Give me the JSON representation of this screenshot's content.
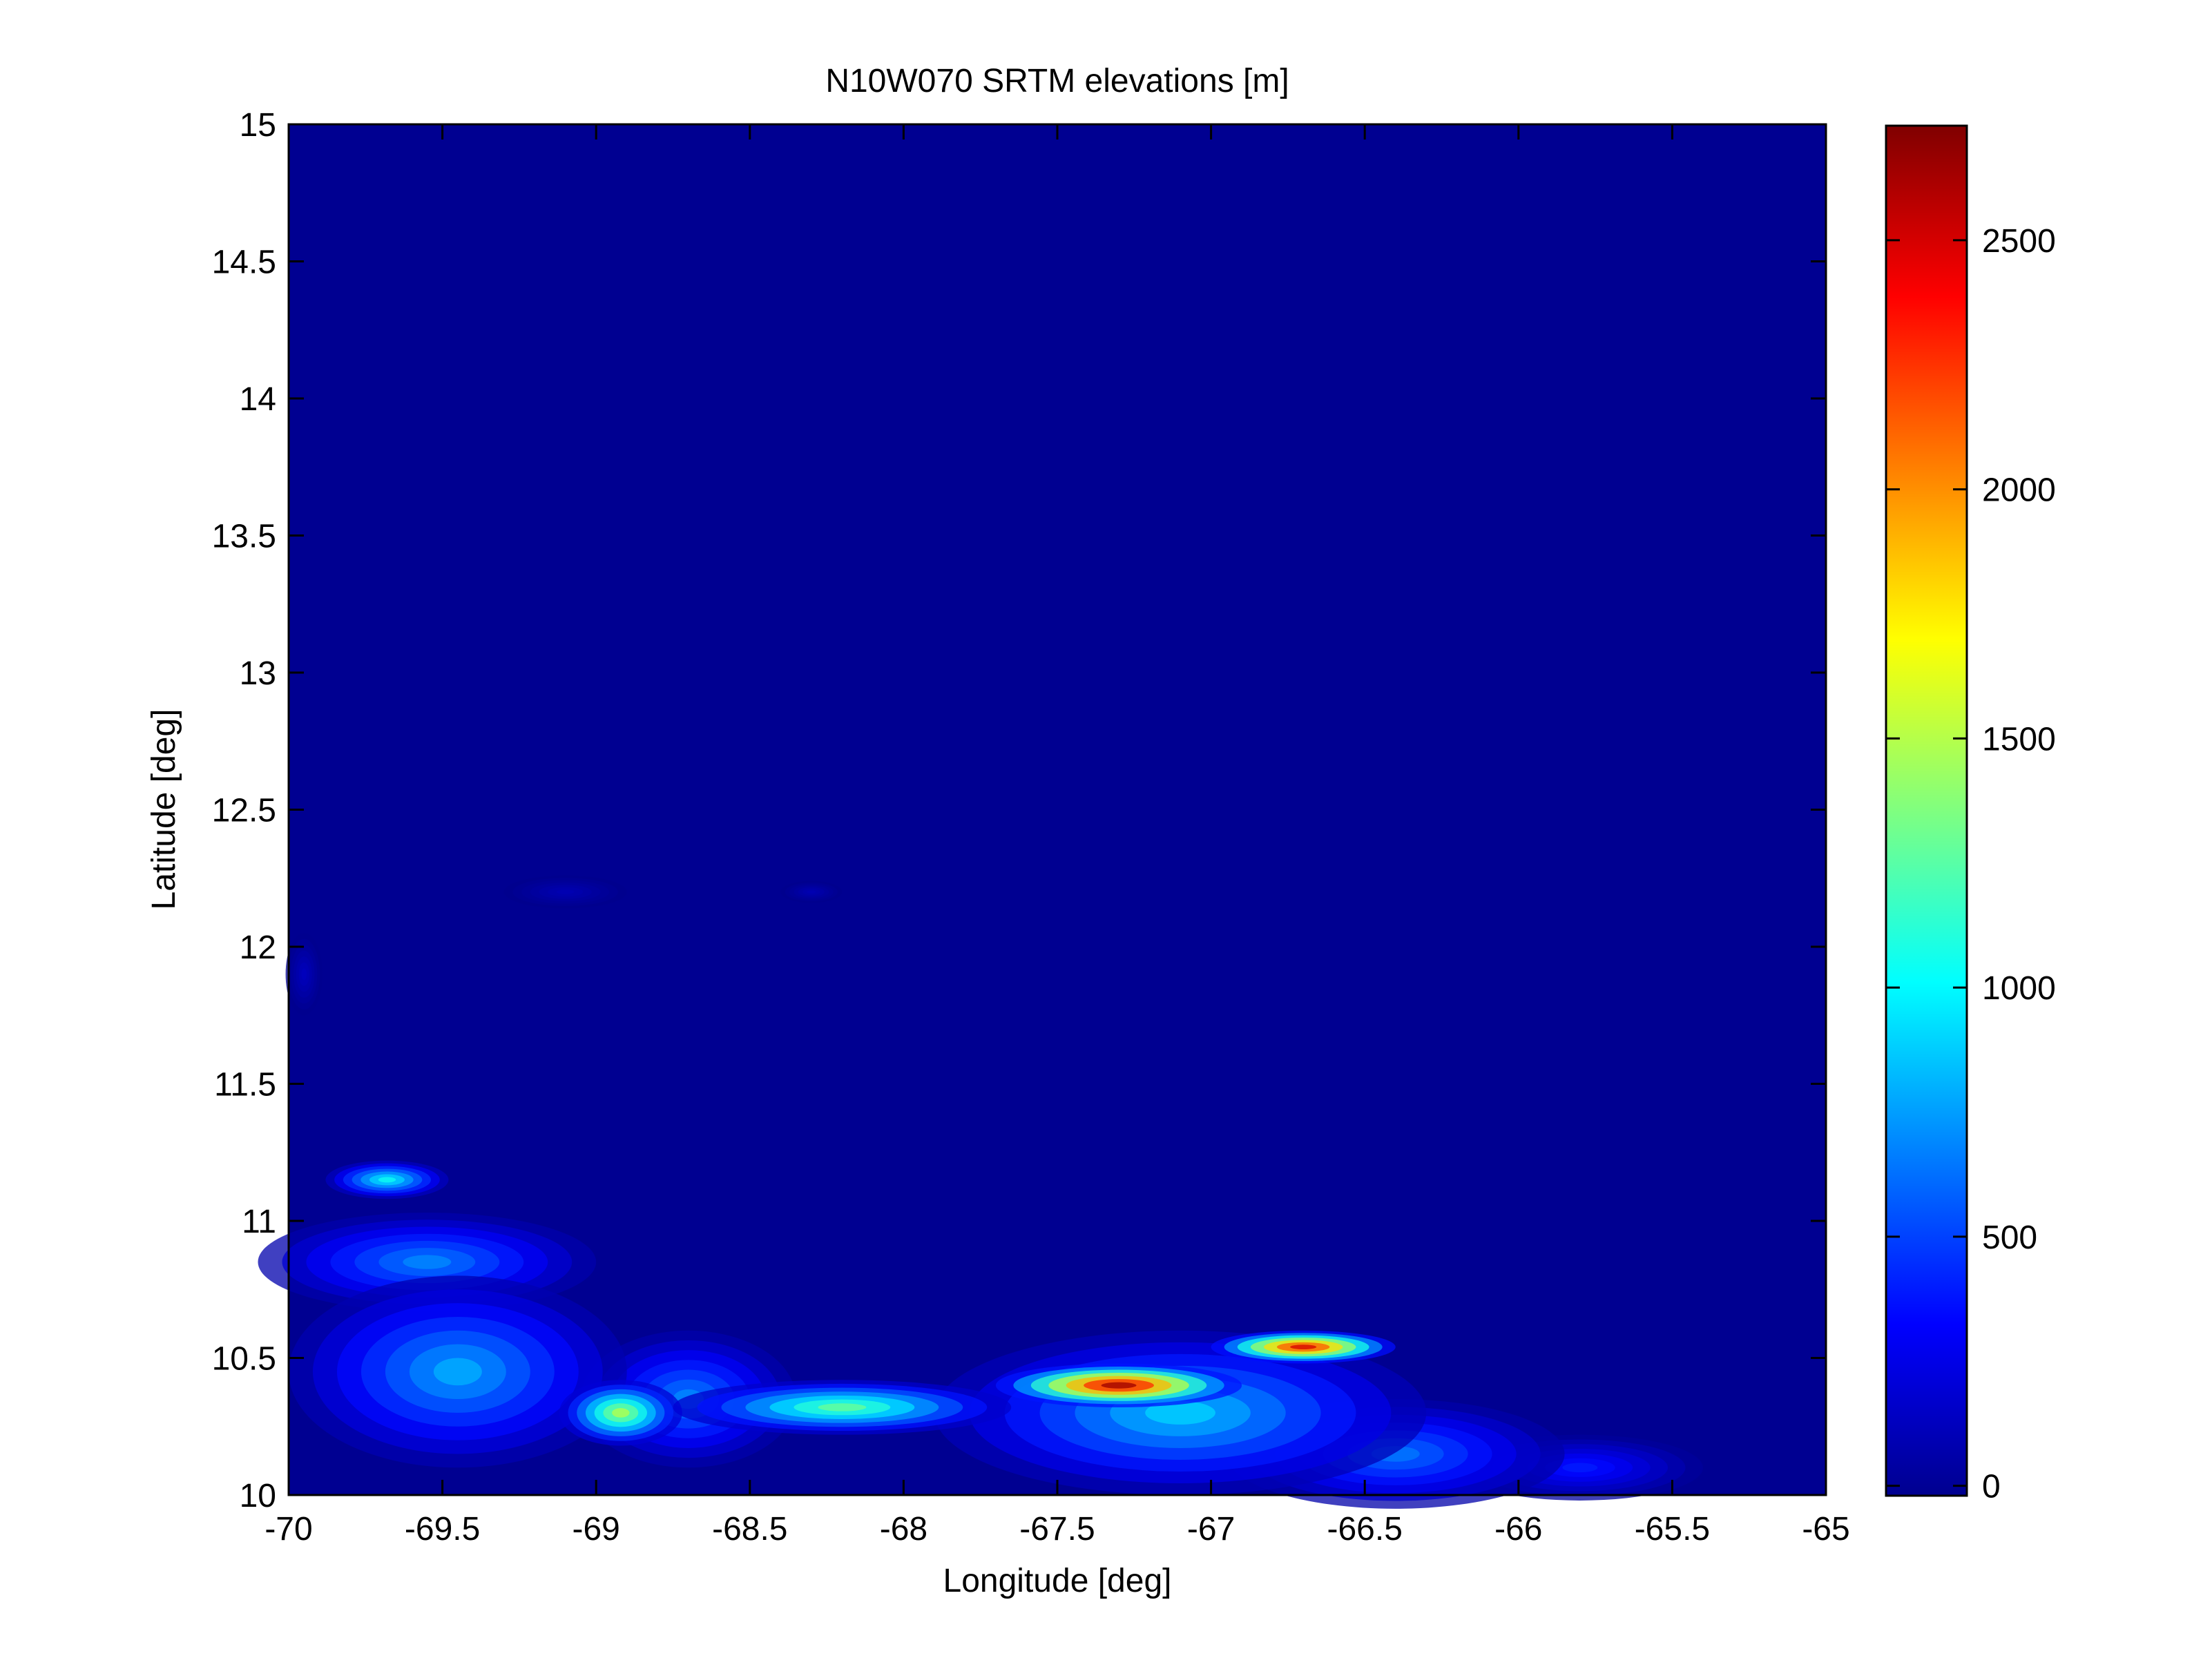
{
  "chart_data": {
    "type": "heatmap",
    "title": "N10W070 SRTM elevations [m]",
    "xlabel": "Longitude [deg]",
    "ylabel": "Latitude [deg]",
    "xlim": [
      -70,
      -65
    ],
    "ylim": [
      10,
      15
    ],
    "x_ticks": [
      -70,
      -69.5,
      -69,
      -68.5,
      -68,
      -67.5,
      -67,
      -66.5,
      -66,
      -65.5,
      -65
    ],
    "y_ticks": [
      10,
      10.5,
      11,
      11.5,
      12,
      12.5,
      13,
      13.5,
      14,
      14.5,
      15
    ],
    "colorbar": {
      "colormap": "jet",
      "range": [
        -20,
        2730
      ],
      "ticks": [
        0,
        500,
        1000,
        1500,
        2000,
        2500
      ]
    },
    "background_value": 0,
    "features": [
      {
        "lon": -69.68,
        "lat": 11.15,
        "rx": 0.2,
        "ry": 0.07,
        "peak": 1050
      },
      {
        "lon": -69.55,
        "lat": 10.85,
        "rx": 0.55,
        "ry": 0.18,
        "peak": 700
      },
      {
        "lon": -69.45,
        "lat": 10.45,
        "rx": 0.55,
        "ry": 0.35,
        "peak": 800
      },
      {
        "lon": -68.92,
        "lat": 10.3,
        "rx": 0.2,
        "ry": 0.12,
        "peak": 1500
      },
      {
        "lon": -68.7,
        "lat": 10.35,
        "rx": 0.35,
        "ry": 0.25,
        "peak": 700
      },
      {
        "lon": -68.2,
        "lat": 10.32,
        "rx": 0.55,
        "ry": 0.1,
        "peak": 1300
      },
      {
        "lon": -67.3,
        "lat": 10.4,
        "rx": 0.4,
        "ry": 0.08,
        "peak": 2650
      },
      {
        "lon": -66.7,
        "lat": 10.54,
        "rx": 0.3,
        "ry": 0.06,
        "peak": 2500
      },
      {
        "lon": -67.1,
        "lat": 10.3,
        "rx": 0.8,
        "ry": 0.3,
        "peak": 900
      },
      {
        "lon": -66.4,
        "lat": 10.15,
        "rx": 0.55,
        "ry": 0.2,
        "peak": 650
      },
      {
        "lon": -65.8,
        "lat": 10.1,
        "rx": 0.4,
        "ry": 0.12,
        "peak": 400
      },
      {
        "lon": -69.95,
        "lat": 11.9,
        "rx": 0.06,
        "ry": 0.15,
        "peak": 150
      },
      {
        "lon": -69.1,
        "lat": 12.2,
        "rx": 0.2,
        "ry": 0.06,
        "peak": 120
      },
      {
        "lon": -68.3,
        "lat": 12.2,
        "rx": 0.1,
        "ry": 0.04,
        "peak": 120
      }
    ]
  }
}
